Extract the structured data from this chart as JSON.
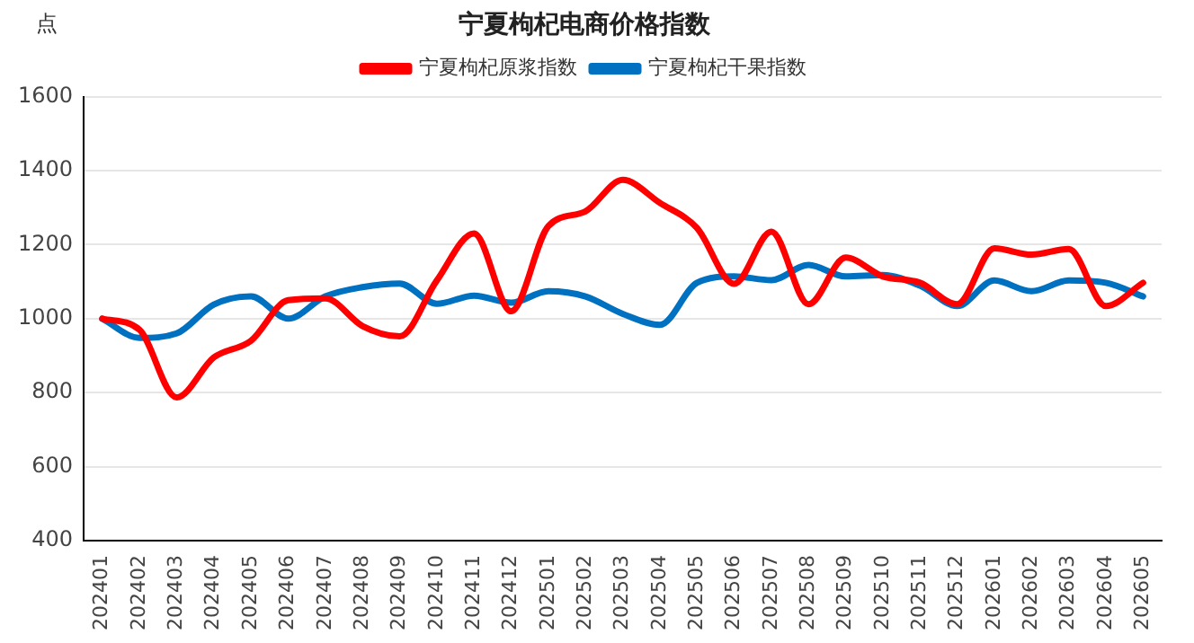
{
  "chart_data": {
    "type": "line",
    "title": "宁夏枸杞电商价格指数",
    "ylabel": "点",
    "categories": [
      "202401",
      "202402",
      "202403",
      "202404",
      "202405",
      "202406",
      "202407",
      "202408",
      "202409",
      "202410",
      "202411",
      "202412",
      "202501",
      "202502",
      "202503",
      "202504",
      "202505",
      "202506",
      "202507",
      "202508",
      "202509",
      "202510",
      "202511",
      "202512",
      "202601",
      "202602",
      "202603",
      "202604",
      "202605"
    ],
    "series": [
      {
        "name": "宁夏枸杞原浆指数",
        "color": "#ff0000",
        "values": [
          1000,
          970,
          787,
          895,
          940,
          1050,
          1055,
          980,
          952,
          1103,
          1230,
          1020,
          1250,
          1290,
          1375,
          1313,
          1245,
          1094,
          1235,
          1039,
          1165,
          1114,
          1097,
          1039,
          1190,
          1173,
          1188,
          1034,
          1097
        ]
      },
      {
        "name": "宁夏枸杞干果指数",
        "color": "#0070c0",
        "values": [
          1000,
          948,
          960,
          1038,
          1060,
          1000,
          1060,
          1085,
          1095,
          1040,
          1062,
          1043,
          1074,
          1060,
          1013,
          983,
          1097,
          1114,
          1104,
          1145,
          1114,
          1118,
          1089,
          1034,
          1103,
          1074,
          1103,
          1097,
          1060
        ]
      }
    ],
    "ylim": [
      400,
      1600
    ],
    "yticks": [
      400,
      600,
      800,
      1000,
      1200,
      1400,
      1600
    ],
    "grid": "y",
    "legend": "top",
    "marker": "none",
    "line_style": "solid"
  }
}
